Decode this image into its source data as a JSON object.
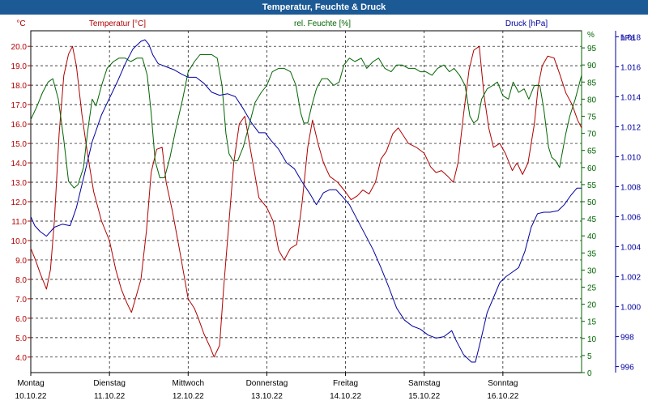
{
  "window": {
    "title": "Temperatur, Feuchte & Druck"
  },
  "colors": {
    "titlebar": "#1c5a95",
    "temperature": "#b00000",
    "humidity": "#006400",
    "pressure": "#0000a0"
  },
  "chart_data": {
    "type": "line",
    "title": "Temperatur, Feuchte & Druck",
    "grid": true,
    "x_ticks": [
      {
        "x": 0,
        "day": "Montag",
        "date": "10.10.22"
      },
      {
        "x": 1,
        "day": "Dienstag",
        "date": "11.10.22"
      },
      {
        "x": 2,
        "day": "Mittwoch",
        "date": "12.10.22"
      },
      {
        "x": 3,
        "day": "Donnerstag",
        "date": "13.10.22"
      },
      {
        "x": 4,
        "day": "Freitag",
        "date": "14.10.22"
      },
      {
        "x": 5,
        "day": "Samstag",
        "date": "15.10.22"
      },
      {
        "x": 6,
        "day": "Sonntag",
        "date": "16.10.22"
      }
    ],
    "xlim": [
      0,
      7
    ],
    "axes": {
      "temperature": {
        "label": "Temperatur [°C]",
        "unit": "°C",
        "ylim": [
          3.2,
          20.8
        ],
        "ticks": [
          "4.0",
          "5.0",
          "6.0",
          "7.0",
          "8.0",
          "9.0",
          "10.0",
          "11.0",
          "12.0",
          "13.0",
          "14.0",
          "15.0",
          "16.0",
          "17.0",
          "18.0",
          "19.0",
          "20.0"
        ]
      },
      "humidity": {
        "label": "rel. Feuchte [%]",
        "unit": "%",
        "ylim": [
          0,
          100
        ],
        "ticks": [
          "0",
          "5",
          "10",
          "15",
          "20",
          "25",
          "30",
          "35",
          "40",
          "45",
          "50",
          "55",
          "60",
          "65",
          "70",
          "75",
          "80",
          "85",
          "90",
          "95",
          "%"
        ]
      },
      "pressure": {
        "label": "Druck [hPa]",
        "unit": "hPa",
        "ylim": [
          995.6,
          1018.4
        ],
        "ticks": [
          "996",
          "998",
          "1.000",
          "1.002",
          "1.004",
          "1.006",
          "1.008",
          "1.010",
          "1.012",
          "1.014",
          "1.016",
          "1.018"
        ]
      }
    },
    "series": [
      {
        "name": "Temperatur [°C]",
        "axis": "temperature",
        "color": "#b00000",
        "points": [
          [
            0,
            9.6
          ],
          [
            0.06,
            9.0
          ],
          [
            0.12,
            8.3
          ],
          [
            0.2,
            7.5
          ],
          [
            0.25,
            8.5
          ],
          [
            0.3,
            11.0
          ],
          [
            0.36,
            15.5
          ],
          [
            0.42,
            18.5
          ],
          [
            0.48,
            19.6
          ],
          [
            0.53,
            20.0
          ],
          [
            0.58,
            19.0
          ],
          [
            0.65,
            16.5
          ],
          [
            0.72,
            14.5
          ],
          [
            0.8,
            12.5
          ],
          [
            0.9,
            11.0
          ],
          [
            1.0,
            10.0
          ],
          [
            1.08,
            8.5
          ],
          [
            1.15,
            7.5
          ],
          [
            1.22,
            6.8
          ],
          [
            1.28,
            6.3
          ],
          [
            1.33,
            7.0
          ],
          [
            1.4,
            8.0
          ],
          [
            1.47,
            10.5
          ],
          [
            1.53,
            13.5
          ],
          [
            1.6,
            14.7
          ],
          [
            1.67,
            14.8
          ],
          [
            1.72,
            13.0
          ],
          [
            1.8,
            11.5
          ],
          [
            1.9,
            9.3
          ],
          [
            2.0,
            7.0
          ],
          [
            2.08,
            6.5
          ],
          [
            2.13,
            6.0
          ],
          [
            2.2,
            5.2
          ],
          [
            2.28,
            4.5
          ],
          [
            2.33,
            4.0
          ],
          [
            2.4,
            4.6
          ],
          [
            2.45,
            7.5
          ],
          [
            2.52,
            11.0
          ],
          [
            2.58,
            14.0
          ],
          [
            2.65,
            16.0
          ],
          [
            2.72,
            16.4
          ],
          [
            2.8,
            14.5
          ],
          [
            2.9,
            12.2
          ],
          [
            3.0,
            11.7
          ],
          [
            3.08,
            11.0
          ],
          [
            3.15,
            9.5
          ],
          [
            3.22,
            9.0
          ],
          [
            3.3,
            9.6
          ],
          [
            3.38,
            9.8
          ],
          [
            3.45,
            12.0
          ],
          [
            3.52,
            14.8
          ],
          [
            3.58,
            16.2
          ],
          [
            3.65,
            15.0
          ],
          [
            3.72,
            14.0
          ],
          [
            3.8,
            13.3
          ],
          [
            3.9,
            13.0
          ],
          [
            4.0,
            12.5
          ],
          [
            4.07,
            12.1
          ],
          [
            4.15,
            12.3
          ],
          [
            4.22,
            12.6
          ],
          [
            4.3,
            12.4
          ],
          [
            4.38,
            13.0
          ],
          [
            4.45,
            14.2
          ],
          [
            4.52,
            14.6
          ],
          [
            4.6,
            15.5
          ],
          [
            4.67,
            15.8
          ],
          [
            4.72,
            15.5
          ],
          [
            4.8,
            15.0
          ],
          [
            4.9,
            14.8
          ],
          [
            5.0,
            14.5
          ],
          [
            5.08,
            13.8
          ],
          [
            5.15,
            13.5
          ],
          [
            5.22,
            13.6
          ],
          [
            5.3,
            13.3
          ],
          [
            5.37,
            13.0
          ],
          [
            5.43,
            14.0
          ],
          [
            5.5,
            16.5
          ],
          [
            5.57,
            18.8
          ],
          [
            5.63,
            19.8
          ],
          [
            5.7,
            20.0
          ],
          [
            5.76,
            17.5
          ],
          [
            5.82,
            15.8
          ],
          [
            5.88,
            14.8
          ],
          [
            5.96,
            15.0
          ],
          [
            6.03,
            14.5
          ],
          [
            6.08,
            14.0
          ],
          [
            6.12,
            13.6
          ],
          [
            6.18,
            14.0
          ],
          [
            6.25,
            13.4
          ],
          [
            6.32,
            14.0
          ],
          [
            6.4,
            16.0
          ],
          [
            6.45,
            18.0
          ],
          [
            6.5,
            19.0
          ],
          [
            6.57,
            19.5
          ],
          [
            6.65,
            19.4
          ],
          [
            6.72,
            18.6
          ],
          [
            6.8,
            17.6
          ],
          [
            6.88,
            17.0
          ],
          [
            6.95,
            16.2
          ],
          [
            7.0,
            15.8
          ]
        ]
      },
      {
        "name": "rel. Feuchte [%]",
        "axis": "humidity",
        "color": "#006400",
        "points": [
          [
            0,
            74
          ],
          [
            0.08,
            78
          ],
          [
            0.15,
            82
          ],
          [
            0.22,
            85
          ],
          [
            0.28,
            86
          ],
          [
            0.35,
            80
          ],
          [
            0.42,
            68
          ],
          [
            0.48,
            56
          ],
          [
            0.55,
            54
          ],
          [
            0.6,
            55
          ],
          [
            0.67,
            60
          ],
          [
            0.72,
            70
          ],
          [
            0.78,
            80
          ],
          [
            0.83,
            78
          ],
          [
            0.9,
            84
          ],
          [
            0.97,
            89
          ],
          [
            1.05,
            91
          ],
          [
            1.12,
            92
          ],
          [
            1.2,
            92
          ],
          [
            1.27,
            91
          ],
          [
            1.35,
            92
          ],
          [
            1.42,
            92
          ],
          [
            1.48,
            87
          ],
          [
            1.53,
            76
          ],
          [
            1.58,
            62
          ],
          [
            1.64,
            57
          ],
          [
            1.7,
            57
          ],
          [
            1.77,
            63
          ],
          [
            1.85,
            72
          ],
          [
            1.93,
            80
          ],
          [
            2.0,
            88
          ],
          [
            2.08,
            91
          ],
          [
            2.15,
            93
          ],
          [
            2.22,
            93
          ],
          [
            2.3,
            93
          ],
          [
            2.37,
            92
          ],
          [
            2.43,
            84
          ],
          [
            2.48,
            70
          ],
          [
            2.52,
            64
          ],
          [
            2.57,
            62
          ],
          [
            2.63,
            62
          ],
          [
            2.7,
            66
          ],
          [
            2.77,
            72
          ],
          [
            2.85,
            79
          ],
          [
            2.93,
            82
          ],
          [
            3.0,
            84
          ],
          [
            3.07,
            88
          ],
          [
            3.15,
            89
          ],
          [
            3.22,
            89
          ],
          [
            3.3,
            88
          ],
          [
            3.37,
            84
          ],
          [
            3.43,
            76
          ],
          [
            3.47,
            73
          ],
          [
            3.52,
            73
          ],
          [
            3.57,
            78
          ],
          [
            3.63,
            83
          ],
          [
            3.7,
            86
          ],
          [
            3.77,
            86
          ],
          [
            3.85,
            84
          ],
          [
            3.92,
            85
          ],
          [
            3.98,
            90
          ],
          [
            4.05,
            92
          ],
          [
            4.12,
            91
          ],
          [
            4.2,
            92
          ],
          [
            4.27,
            89
          ],
          [
            4.35,
            91
          ],
          [
            4.42,
            92
          ],
          [
            4.5,
            89
          ],
          [
            4.58,
            88
          ],
          [
            4.65,
            90
          ],
          [
            4.72,
            90
          ],
          [
            4.8,
            89
          ],
          [
            4.88,
            89
          ],
          [
            4.95,
            88
          ],
          [
            5.02,
            88
          ],
          [
            5.1,
            87
          ],
          [
            5.17,
            89
          ],
          [
            5.25,
            90
          ],
          [
            5.32,
            88
          ],
          [
            5.38,
            89
          ],
          [
            5.45,
            87
          ],
          [
            5.52,
            84
          ],
          [
            5.58,
            75
          ],
          [
            5.63,
            73
          ],
          [
            5.68,
            74
          ],
          [
            5.73,
            80
          ],
          [
            5.8,
            83
          ],
          [
            5.87,
            84
          ],
          [
            5.93,
            85
          ],
          [
            6.0,
            81
          ],
          [
            6.07,
            80
          ],
          [
            6.13,
            85
          ],
          [
            6.2,
            82
          ],
          [
            6.27,
            83
          ],
          [
            6.33,
            80
          ],
          [
            6.4,
            84
          ],
          [
            6.47,
            84
          ],
          [
            6.52,
            77
          ],
          [
            6.58,
            66
          ],
          [
            6.62,
            63
          ],
          [
            6.67,
            62
          ],
          [
            6.72,
            60
          ],
          [
            6.8,
            70
          ],
          [
            6.85,
            75
          ],
          [
            6.92,
            80
          ],
          [
            7.0,
            87
          ]
        ]
      },
      {
        "name": "Druck [hPa]",
        "axis": "pressure",
        "color": "#0000a0",
        "points": [
          [
            0,
            1006.0
          ],
          [
            0.05,
            1005.4
          ],
          [
            0.12,
            1005.0
          ],
          [
            0.2,
            1004.7
          ],
          [
            0.3,
            1005.3
          ],
          [
            0.4,
            1005.5
          ],
          [
            0.5,
            1005.4
          ],
          [
            0.58,
            1006.6
          ],
          [
            0.68,
            1008.8
          ],
          [
            0.78,
            1011.0
          ],
          [
            0.9,
            1012.8
          ],
          [
            1.0,
            1013.9
          ],
          [
            1.1,
            1015.0
          ],
          [
            1.2,
            1016.2
          ],
          [
            1.3,
            1017.2
          ],
          [
            1.4,
            1017.7
          ],
          [
            1.45,
            1017.8
          ],
          [
            1.5,
            1017.5
          ],
          [
            1.55,
            1016.8
          ],
          [
            1.62,
            1016.2
          ],
          [
            1.72,
            1016.0
          ],
          [
            1.82,
            1015.8
          ],
          [
            1.92,
            1015.5
          ],
          [
            2.0,
            1015.3
          ],
          [
            2.1,
            1015.3
          ],
          [
            2.2,
            1014.9
          ],
          [
            2.3,
            1014.3
          ],
          [
            2.4,
            1014.1
          ],
          [
            2.5,
            1014.2
          ],
          [
            2.6,
            1014.0
          ],
          [
            2.7,
            1013.2
          ],
          [
            2.8,
            1012.3
          ],
          [
            2.9,
            1011.6
          ],
          [
            2.98,
            1011.6
          ],
          [
            3.05,
            1011.1
          ],
          [
            3.15,
            1010.5
          ],
          [
            3.25,
            1009.6
          ],
          [
            3.35,
            1009.2
          ],
          [
            3.45,
            1008.3
          ],
          [
            3.55,
            1007.5
          ],
          [
            3.63,
            1006.8
          ],
          [
            3.72,
            1007.6
          ],
          [
            3.8,
            1007.8
          ],
          [
            3.88,
            1007.8
          ],
          [
            3.95,
            1007.4
          ],
          [
            4.05,
            1006.8
          ],
          [
            4.15,
            1005.8
          ],
          [
            4.25,
            1004.8
          ],
          [
            4.35,
            1003.8
          ],
          [
            4.45,
            1002.6
          ],
          [
            4.55,
            1001.3
          ],
          [
            4.65,
            999.9
          ],
          [
            4.75,
            999.1
          ],
          [
            4.85,
            998.7
          ],
          [
            4.95,
            998.5
          ],
          [
            5.05,
            998.1
          ],
          [
            5.15,
            997.9
          ],
          [
            5.25,
            998.0
          ],
          [
            5.35,
            998.4
          ],
          [
            5.4,
            997.8
          ],
          [
            5.5,
            996.8
          ],
          [
            5.6,
            996.3
          ],
          [
            5.65,
            996.3
          ],
          [
            5.72,
            997.8
          ],
          [
            5.8,
            999.6
          ],
          [
            5.88,
            1000.6
          ],
          [
            5.96,
            1001.6
          ],
          [
            6.04,
            1002.0
          ],
          [
            6.12,
            1002.3
          ],
          [
            6.2,
            1002.6
          ],
          [
            6.28,
            1003.7
          ],
          [
            6.36,
            1005.3
          ],
          [
            6.44,
            1006.2
          ],
          [
            6.52,
            1006.3
          ],
          [
            6.6,
            1006.3
          ],
          [
            6.7,
            1006.4
          ],
          [
            6.78,
            1006.8
          ],
          [
            6.86,
            1007.4
          ],
          [
            6.94,
            1007.9
          ],
          [
            7.0,
            1007.9
          ]
        ]
      }
    ]
  }
}
